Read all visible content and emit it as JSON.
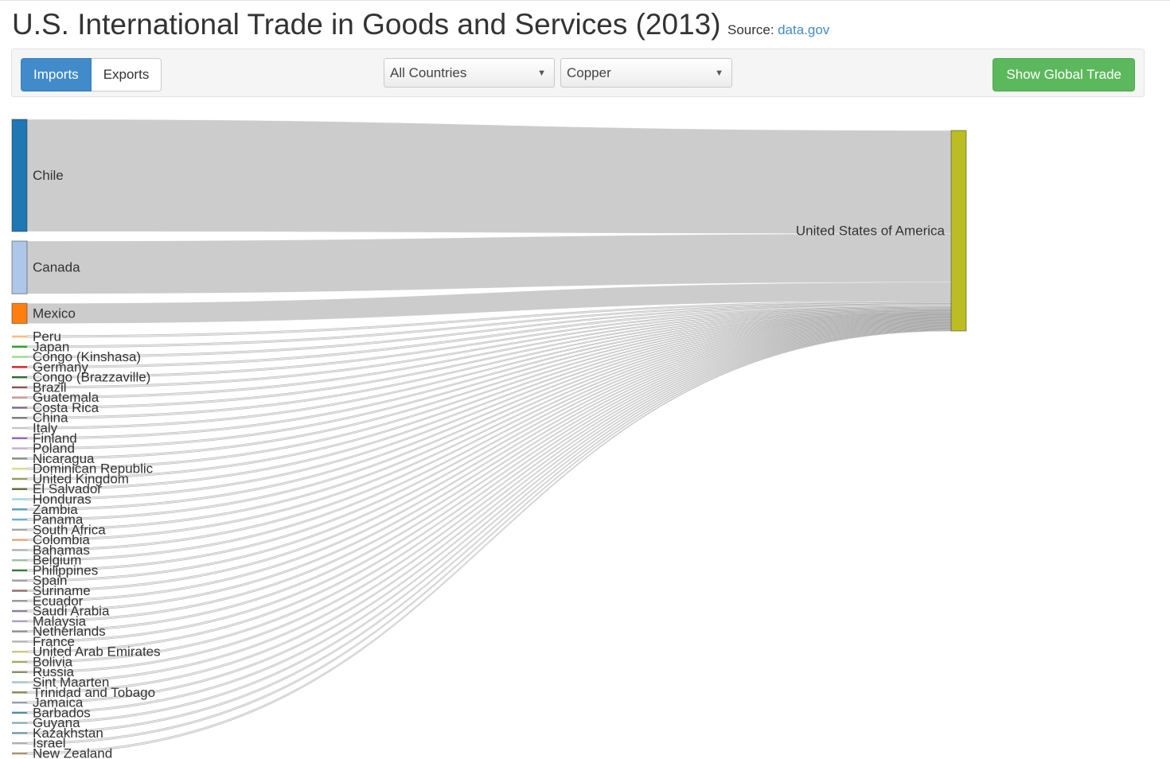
{
  "header": {
    "title": "U.S. International Trade in Goods and Services (2013)",
    "source_label": "Source:",
    "source_link": "data.gov"
  },
  "toolbar": {
    "imports_label": "Imports",
    "exports_label": "Exports",
    "country_select": "All Countries",
    "commodity_select": "Copper",
    "global_button": "Show Global Trade"
  },
  "sankey": {
    "target": {
      "name": "United States of America",
      "color": "#bcbd22"
    },
    "link_color": "#cccccc",
    "sources": [
      {
        "name": "Chile",
        "value": 100,
        "color": "#1f77b4"
      },
      {
        "name": "Canada",
        "value": 47,
        "color": "#aec7e8"
      },
      {
        "name": "Mexico",
        "value": 18,
        "color": "#ff7f0e"
      },
      {
        "name": "Peru",
        "value": 1.4,
        "color": "#ffbb78"
      },
      {
        "name": "Japan",
        "value": 1.2,
        "color": "#2ca02c"
      },
      {
        "name": "Congo (Kinshasa)",
        "value": 1.0,
        "color": "#98df8a"
      },
      {
        "name": "Germany",
        "value": 1.6,
        "color": "#d62728"
      },
      {
        "name": "Congo (Brazzaville)",
        "value": 0.9,
        "color": "#2f6b2f"
      },
      {
        "name": "Brazil",
        "value": 0.8,
        "color": "#8c564b"
      },
      {
        "name": "Guatemala",
        "value": 0.8,
        "color": "#c49c94"
      },
      {
        "name": "Costa Rica",
        "value": 0.8,
        "color": "#7f6b8f"
      },
      {
        "name": "China",
        "value": 0.7,
        "color": "#7f7f7f"
      },
      {
        "name": "Italy",
        "value": 0.6,
        "color": "#c7c7c7"
      },
      {
        "name": "Finland",
        "value": 0.8,
        "color": "#9467bd"
      },
      {
        "name": "Poland",
        "value": 0.6,
        "color": "#c5b0d5"
      },
      {
        "name": "Nicaragua",
        "value": 0.6,
        "color": "#8c8c8c"
      },
      {
        "name": "Dominican Republic",
        "value": 0.6,
        "color": "#dbdb8d"
      },
      {
        "name": "United Kingdom",
        "value": 0.6,
        "color": "#9a9a5a"
      },
      {
        "name": "El Salvador",
        "value": 0.6,
        "color": "#6b6b3a"
      },
      {
        "name": "Honduras",
        "value": 0.6,
        "color": "#9edae5"
      },
      {
        "name": "Zambia",
        "value": 0.6,
        "color": "#5fa2b8"
      },
      {
        "name": "Panama",
        "value": 0.6,
        "color": "#6baed6"
      },
      {
        "name": "South Africa",
        "value": 0.6,
        "color": "#a6a6a6"
      },
      {
        "name": "Colombia",
        "value": 0.6,
        "color": "#e7a87c"
      },
      {
        "name": "Bahamas",
        "value": 0.6,
        "color": "#b3b3b3"
      },
      {
        "name": "Belgium",
        "value": 0.6,
        "color": "#9fbf9f"
      },
      {
        "name": "Philippines",
        "value": 0.6,
        "color": "#3a7a3a"
      },
      {
        "name": "Spain",
        "value": 0.6,
        "color": "#a0a0a0"
      },
      {
        "name": "Suriname",
        "value": 0.6,
        "color": "#8f6f6f"
      },
      {
        "name": "Ecuador",
        "value": 0.6,
        "color": "#999999"
      },
      {
        "name": "Saudi Arabia",
        "value": 0.6,
        "color": "#8a7fa0"
      },
      {
        "name": "Malaysia",
        "value": 0.6,
        "color": "#b0a0c0"
      },
      {
        "name": "Netherlands",
        "value": 0.6,
        "color": "#909090"
      },
      {
        "name": "France",
        "value": 0.6,
        "color": "#b5b5b5"
      },
      {
        "name": "United Arab Emirates",
        "value": 0.6,
        "color": "#c9c98a"
      },
      {
        "name": "Bolivia",
        "value": 0.6,
        "color": "#a8a86a"
      },
      {
        "name": "Russia",
        "value": 0.6,
        "color": "#8d8d6a"
      },
      {
        "name": "Sint Maarten",
        "value": 0.6,
        "color": "#aac4cc"
      },
      {
        "name": "Trinidad and Tobago",
        "value": 0.6,
        "color": "#8a8a5a"
      },
      {
        "name": "Jamaica",
        "value": 0.6,
        "color": "#9a9ab0"
      },
      {
        "name": "Barbados",
        "value": 0.6,
        "color": "#4f8fa8"
      },
      {
        "name": "Guyana",
        "value": 0.6,
        "color": "#8fb0c0"
      },
      {
        "name": "Kazakhstan",
        "value": 0.6,
        "color": "#7a9aaa"
      },
      {
        "name": "Israel",
        "value": 0.6,
        "color": "#b0b0b0"
      },
      {
        "name": "New Zealand",
        "value": 0.6,
        "color": "#a89070"
      }
    ]
  }
}
